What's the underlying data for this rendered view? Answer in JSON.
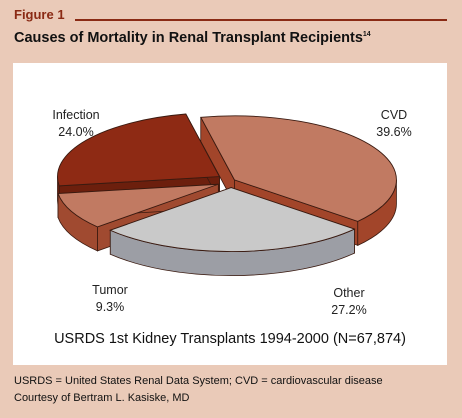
{
  "figure": {
    "label": "Figure 1",
    "title": "Causes of Mortality in Renal Transplant Recipients",
    "title_ref": "14"
  },
  "chart_data": {
    "type": "pie",
    "style": "3d-exploded",
    "title": "Causes of Mortality in Renal Transplant Recipients",
    "caption": "USRDS 1st Kidney Transplants 1994-2000 (N=67,874)",
    "slices": [
      {
        "name": "CVD",
        "value": 39.6,
        "value_label": "39.6%",
        "color_top": "#c17a62",
        "color_side": "#a2452a",
        "explode": 4
      },
      {
        "name": "Other",
        "value": 27.2,
        "value_label": "27.2%",
        "color_top": "#c9c9c9",
        "color_side": "#9c9ea5",
        "explode": 12
      },
      {
        "name": "Tumor",
        "value": 9.3,
        "value_label": "9.3%",
        "color_top": "#c17a62",
        "color_side": "#a04a30",
        "explode": 14
      },
      {
        "name": "Infection",
        "value": 24.0,
        "value_label": "24.0%",
        "color_top": "#8e2a14",
        "color_side": "#6c1f0d",
        "explode": 14
      }
    ]
  },
  "footer": {
    "line1": "USRDS = United States Renal Data System; CVD = cardiovascular disease",
    "line2": "Courtesy of Bertram L. Kasiske, MD"
  }
}
